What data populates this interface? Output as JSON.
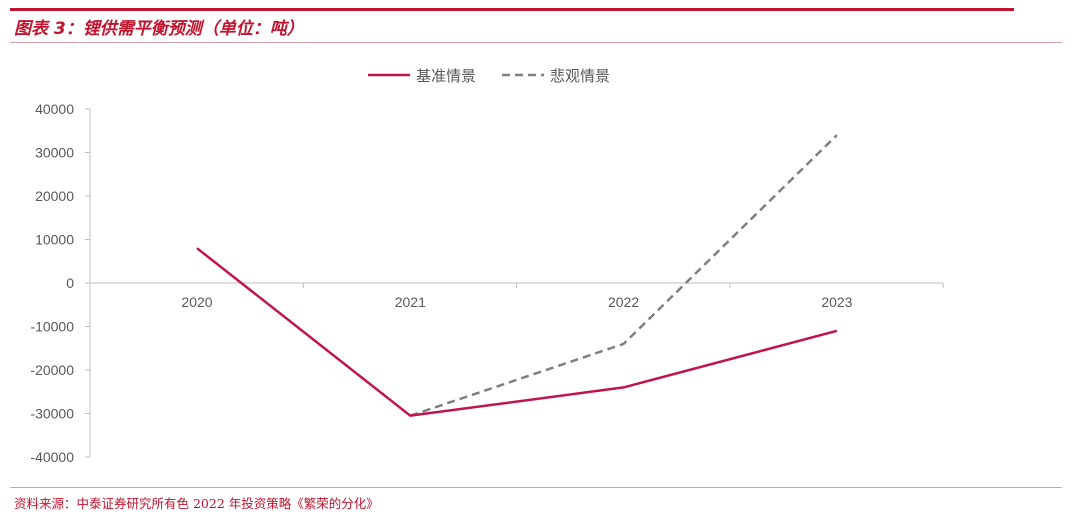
{
  "header": {
    "title": "图表 3：锂供需平衡预测（单位：吨）"
  },
  "footer": {
    "source": "资料来源：中泰证券研究所有色 2022 年投资策略《繁荣的分化》"
  },
  "colors": {
    "accent": "#c0142f",
    "base_line": "#c0144f",
    "pessimistic_line": "#808080",
    "axis": "#bfbfbf"
  },
  "chart_data": {
    "type": "line",
    "categories": [
      "2020",
      "2021",
      "2022",
      "2023"
    ],
    "ylim": [
      -40000,
      40000
    ],
    "yticks": [
      40000,
      30000,
      20000,
      10000,
      0,
      -10000,
      -20000,
      -30000,
      -40000
    ],
    "legend_position": "top-center",
    "grid": false,
    "series": [
      {
        "name": "基准情景",
        "values": [
          8000,
          -30500,
          -24000,
          -11000
        ],
        "style": "solid"
      },
      {
        "name": "悲观情景",
        "values": [
          null,
          -30500,
          -14000,
          34000
        ],
        "style": "dashed"
      }
    ]
  }
}
